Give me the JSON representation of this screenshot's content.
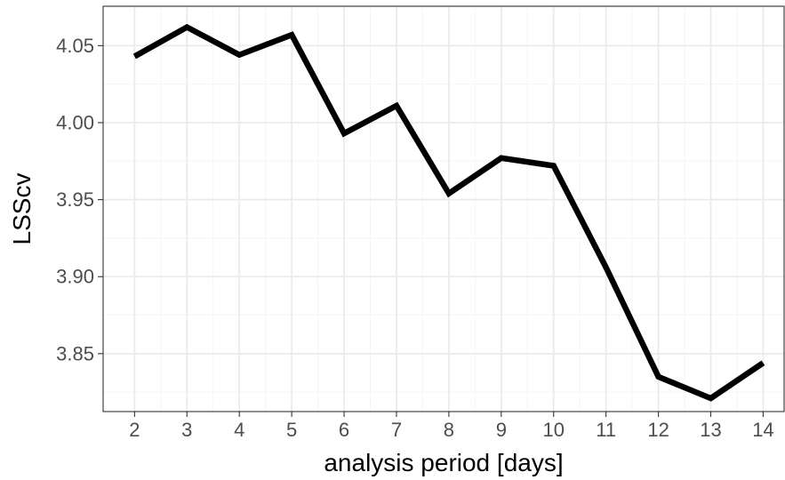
{
  "chart_data": {
    "type": "line",
    "title": "",
    "xlabel": "analysis period [days]",
    "ylabel": "LSScv",
    "x": [
      2,
      3,
      4,
      5,
      6,
      7,
      8,
      9,
      10,
      11,
      12,
      13,
      14
    ],
    "series": [
      {
        "values": [
          4.043,
          4.062,
          4.044,
          4.057,
          3.993,
          4.011,
          3.954,
          3.977,
          3.972,
          3.906,
          3.835,
          3.821,
          3.844
        ]
      }
    ],
    "xlim": [
      1.4,
      14.4
    ],
    "ylim": [
      3.8124,
      4.0756
    ],
    "xticks": [
      2,
      3,
      4,
      5,
      6,
      7,
      8,
      9,
      10,
      11,
      12,
      13,
      14
    ],
    "xtick_labels": [
      "2",
      "3",
      "4",
      "5",
      "6",
      "7",
      "8",
      "9",
      "10",
      "11",
      "12",
      "13",
      "14"
    ],
    "yticks": [
      3.85,
      3.9,
      3.95,
      4.0,
      4.05
    ],
    "ytick_labels": [
      "3.85",
      "3.90",
      "3.95",
      "4.00",
      "4.05"
    ],
    "grid": true,
    "legend": "none",
    "colors": {
      "line": "#000000",
      "grid_major": "#ebebeb",
      "grid_minor": "#f5f5f5",
      "panel_border": "#333333",
      "tick_text": "#4d4d4d"
    }
  }
}
